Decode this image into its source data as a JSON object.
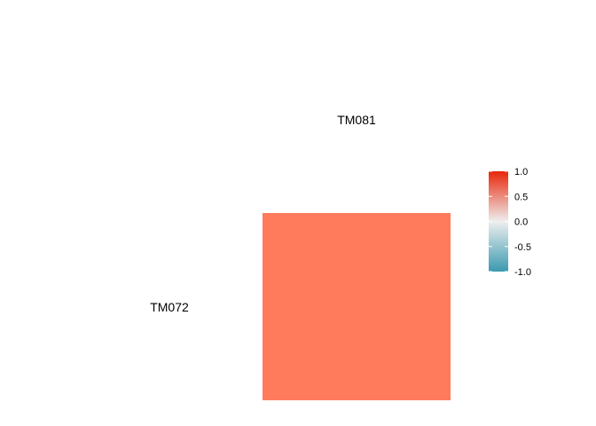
{
  "chart_data": {
    "type": "heatmap",
    "title": "",
    "xlabel": "",
    "ylabel": "",
    "x_categories": [
      "TM081"
    ],
    "y_categories": [
      "TM072"
    ],
    "cells": [
      {
        "x": "TM081",
        "y": "TM072",
        "value": 0.6
      }
    ],
    "color_scale": {
      "min": -1.0,
      "max": 1.0,
      "low_color": "#3A9AB0",
      "mid_color": "#EEEEEE",
      "high_color": "#E8270B",
      "ticks": [
        1.0,
        0.5,
        0.0,
        -0.5,
        -1.0
      ],
      "tick_labels": [
        "1.0",
        "0.5",
        "0.0",
        "-0.5",
        "-1.0"
      ]
    },
    "legend_position": "right",
    "grid": false
  },
  "colors": {
    "background": "#ffffff",
    "cell_fill": "#FF7B5C"
  }
}
